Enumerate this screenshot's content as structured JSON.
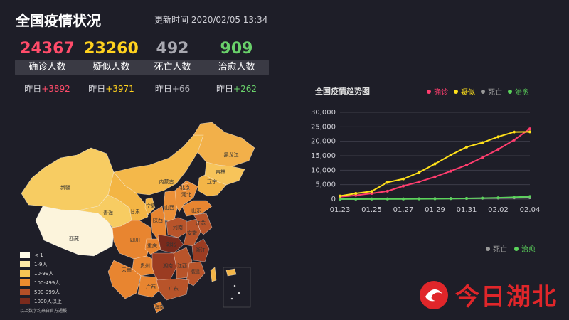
{
  "header": {
    "title": "全国疫情状况",
    "updated": "更新时间 2020/02/05 13:34"
  },
  "stats": [
    {
      "value": "24367",
      "label": "确诊人数",
      "delta_prefix": "昨日",
      "delta": "+3892",
      "color": "#ff4c6a"
    },
    {
      "value": "23260",
      "label": "疑似人数",
      "delta_prefix": "昨日",
      "delta": "+3971",
      "color": "#ffd21e"
    },
    {
      "value": "492",
      "label": "死亡人数",
      "delta_prefix": "昨日",
      "delta": "+66",
      "color": "#a8a8b0"
    },
    {
      "value": "909",
      "label": "治愈人数",
      "delta_prefix": "昨日",
      "delta": "+262",
      "color": "#69d16a"
    }
  ],
  "map": {
    "provinces": [
      "新疆",
      "西藏",
      "青海",
      "甘肃",
      "内蒙古",
      "黑龙江",
      "吉林",
      "辽宁",
      "宁夏",
      "山西",
      "河北",
      "北京",
      "山东",
      "陕西",
      "河南",
      "四川",
      "重庆",
      "湖北",
      "安徽",
      "江苏",
      "贵州",
      "湖南",
      "江西",
      "浙江",
      "云南",
      "广西",
      "广东",
      "福建",
      "海南"
    ],
    "legend": [
      {
        "label": "< 1",
        "color": "#fffbe8"
      },
      {
        "label": "1-9人",
        "color": "#fde9a7"
      },
      {
        "label": "10-99人",
        "color": "#f7c554"
      },
      {
        "label": "100-499人",
        "color": "#ec8b2e"
      },
      {
        "label": "500-999人",
        "color": "#b44f27"
      },
      {
        "label": "1000人以上",
        "color": "#7a2a1c"
      }
    ],
    "note": "以上数字均来自官方通报"
  },
  "chart_data": {
    "type": "line",
    "title": "全国疫情趋势图",
    "categories": [
      "01.23",
      "01.24",
      "01.25",
      "01.26",
      "01.27",
      "01.28",
      "01.29",
      "01.30",
      "01.31",
      "02.01",
      "02.02",
      "02.03",
      "02.04"
    ],
    "xticks": [
      "01.23",
      "01.25",
      "01.27",
      "01.29",
      "01.31",
      "02.02",
      "02.04"
    ],
    "yticks": [
      "0",
      "5,000",
      "10,000",
      "15,000",
      "20,000",
      "25,000",
      "30,000"
    ],
    "ylim": [
      0,
      30000
    ],
    "series": [
      {
        "name": "确诊",
        "color": "#ff3d6e",
        "values": [
          830,
          1287,
          1975,
          2744,
          4515,
          5974,
          7711,
          9692,
          11791,
          14380,
          17205,
          20438,
          24324
        ]
      },
      {
        "name": "疑似",
        "color": "#ffe01a",
        "values": [
          1072,
          1965,
          2684,
          5794,
          6973,
          9239,
          12167,
          15238,
          17988,
          19544,
          21558,
          23214,
          23260
        ]
      },
      {
        "name": "死亡",
        "color": "#999999",
        "values": [
          25,
          41,
          56,
          80,
          106,
          132,
          170,
          213,
          259,
          304,
          361,
          425,
          490
        ]
      },
      {
        "name": "治愈",
        "color": "#5bd35b",
        "values": [
          34,
          38,
          49,
          51,
          60,
          103,
          124,
          171,
          243,
          328,
          475,
          632,
          892
        ]
      }
    ],
    "legend_bottom": [
      "死亡",
      "治愈"
    ]
  },
  "brand": {
    "text": "今日湖北"
  }
}
